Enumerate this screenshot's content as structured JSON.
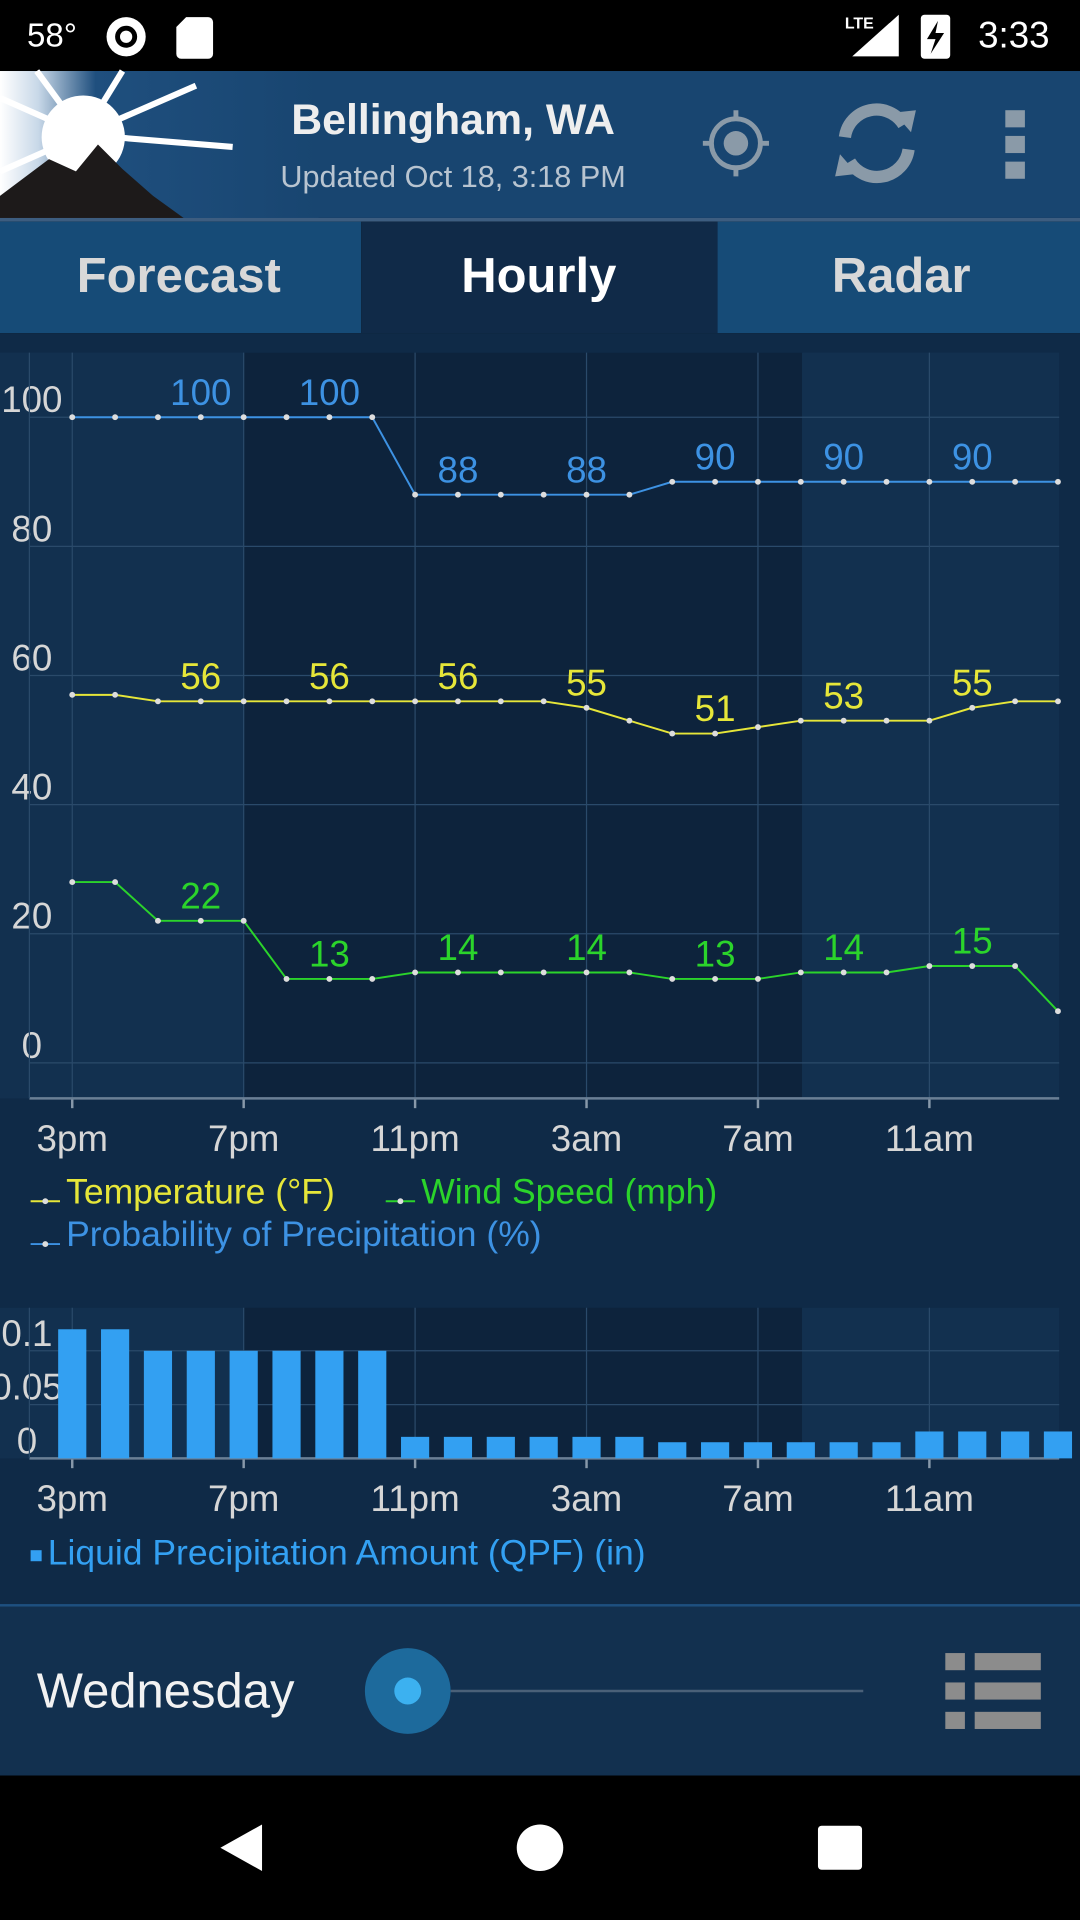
{
  "status_bar": {
    "temperature": "58°",
    "network": "LTE",
    "time": "3:33"
  },
  "header": {
    "location": "Bellingham, WA",
    "updated": "Updated Oct 18, 3:18 PM"
  },
  "tabs": [
    "Forecast",
    "Hourly",
    "Radar"
  ],
  "chart_data": [
    {
      "type": "line",
      "categories": [
        "3pm",
        null,
        null,
        null,
        "7pm",
        null,
        null,
        null,
        "11pm",
        null,
        null,
        null,
        "3am",
        null,
        null,
        null,
        "7am",
        null,
        null,
        null,
        "11am",
        null,
        null,
        null
      ],
      "series": [
        {
          "name": "Temperature (°F)",
          "color": "#e6e639",
          "values": [
            57,
            57,
            56,
            56,
            56,
            56,
            56,
            56,
            56,
            56,
            56,
            56,
            55,
            53,
            51,
            51,
            52,
            53,
            53,
            53,
            53,
            55,
            56,
            56
          ]
        },
        {
          "name": "Wind Speed (mph)",
          "color": "#2bd42b",
          "values": [
            28,
            28,
            22,
            22,
            22,
            13,
            13,
            13,
            14,
            14,
            14,
            14,
            14,
            14,
            13,
            13,
            13,
            14,
            14,
            14,
            15,
            15,
            15,
            8
          ]
        },
        {
          "name": "Probability of Precipitation (%)",
          "color": "#3d92e3",
          "values": [
            100,
            100,
            100,
            100,
            100,
            100,
            100,
            100,
            88,
            88,
            88,
            88,
            88,
            88,
            90,
            90,
            90,
            90,
            90,
            90,
            90,
            90,
            90,
            90
          ]
        }
      ],
      "ylim": [
        -5.5,
        110
      ],
      "yticks": [
        0,
        20,
        40,
        60,
        80,
        100
      ],
      "grid": true
    },
    {
      "type": "bar",
      "categories": [
        "3pm",
        null,
        null,
        null,
        "7pm",
        null,
        null,
        null,
        "11pm",
        null,
        null,
        null,
        "3am",
        null,
        null,
        null,
        "7am",
        null,
        null,
        null,
        "11am",
        null,
        null,
        null
      ],
      "series": [
        {
          "name": "Liquid Precipitation Amount (QPF) (in)",
          "color": "#33a0f2",
          "values": [
            0.12,
            0.12,
            0.1,
            0.1,
            0.1,
            0.1,
            0.1,
            0.1,
            0.02,
            0.02,
            0.02,
            0.02,
            0.02,
            0.02,
            0.015,
            0.015,
            0.015,
            0.015,
            0.015,
            0.015,
            0.025,
            0.025,
            0.025,
            0.025
          ]
        }
      ],
      "ylim": [
        0,
        0.14
      ],
      "yticks": [
        0,
        0.05,
        0.1
      ],
      "grid": true
    }
  ],
  "footer": {
    "day": "Wednesday"
  }
}
